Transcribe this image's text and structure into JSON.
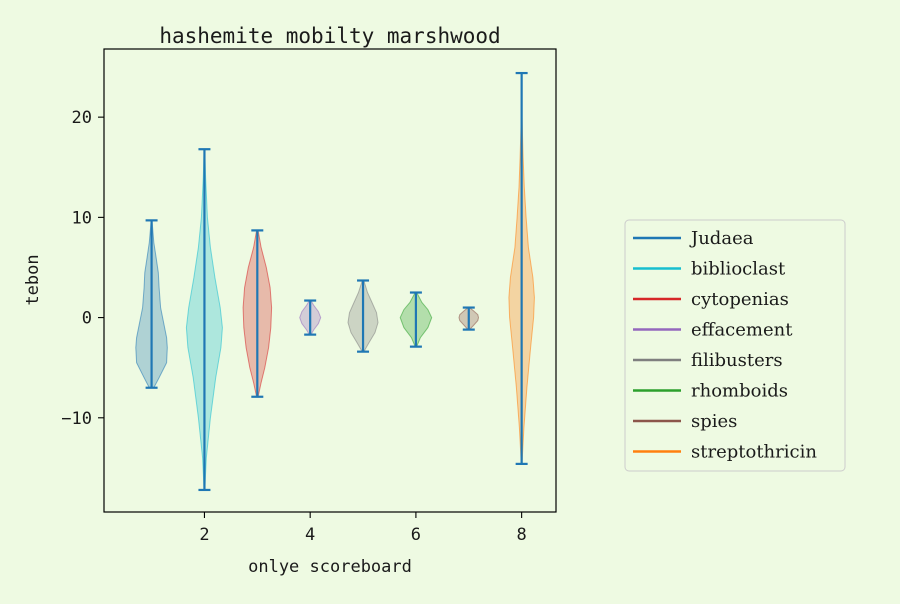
{
  "chart_data": {
    "type": "violin",
    "title": "hashemite mobilty marshwood",
    "xlabel": "onlye scoreboard",
    "ylabel": "tebon",
    "xlim": [
      0.1,
      8.65
    ],
    "ylim": [
      -19.4,
      26.8
    ],
    "xticks": [
      2,
      4,
      6,
      8
    ],
    "yticks": [
      -10,
      0,
      10,
      20
    ],
    "grid": false,
    "legend_position": "right",
    "colors": {
      "background": "#eefae2",
      "axes_background": "#eefae2",
      "extrema_lines": "#1f77b4"
    },
    "series": [
      {
        "name": "Judaea",
        "color": "#1f77b4",
        "x": 1,
        "min": -7.0,
        "max": 9.7,
        "profile": [
          [
            -7.0,
            0.3
          ],
          [
            -6.0,
            1.0
          ],
          [
            -4.5,
            2.0
          ],
          [
            -3.0,
            2.1
          ],
          [
            -2.0,
            2.0
          ],
          [
            -0.5,
            1.6
          ],
          [
            1.0,
            1.2
          ],
          [
            3.0,
            1.0
          ],
          [
            4.5,
            0.9
          ],
          [
            6.0,
            0.6
          ],
          [
            7.5,
            0.3
          ],
          [
            9.7,
            0.05
          ]
        ]
      },
      {
        "name": "biblioclast",
        "color": "#17becf",
        "x": 2,
        "min": -17.2,
        "max": 16.8,
        "profile": [
          [
            -17.2,
            0.05
          ],
          [
            -14,
            0.25
          ],
          [
            -10,
            0.8
          ],
          [
            -6,
            1.5
          ],
          [
            -3,
            2.2
          ],
          [
            -1,
            2.4
          ],
          [
            1,
            2.1
          ],
          [
            4,
            1.4
          ],
          [
            7,
            0.8
          ],
          [
            10,
            0.4
          ],
          [
            14,
            0.15
          ],
          [
            16.8,
            0.03
          ]
        ]
      },
      {
        "name": "cytopenias",
        "color": "#d62728",
        "x": 3,
        "min": -7.9,
        "max": 8.7,
        "profile": [
          [
            -7.9,
            0.1
          ],
          [
            -6.5,
            0.5
          ],
          [
            -5,
            1.0
          ],
          [
            -3,
            1.5
          ],
          [
            -1,
            1.8
          ],
          [
            1,
            1.9
          ],
          [
            3,
            1.7
          ],
          [
            5,
            1.2
          ],
          [
            7,
            0.5
          ],
          [
            8.7,
            0.1
          ]
        ]
      },
      {
        "name": "effacement",
        "color": "#9467bd",
        "x": 4,
        "min": -1.7,
        "max": 1.7,
        "profile": [
          [
            -1.7,
            0.1
          ],
          [
            -1.2,
            0.5
          ],
          [
            -0.6,
            1.1
          ],
          [
            0,
            1.4
          ],
          [
            0.6,
            1.1
          ],
          [
            1.2,
            0.5
          ],
          [
            1.7,
            0.1
          ]
        ]
      },
      {
        "name": "filibusters",
        "color": "#7f7f7f",
        "x": 5,
        "min": -3.4,
        "max": 3.7,
        "profile": [
          [
            -3.4,
            0.1
          ],
          [
            -2.5,
            0.8
          ],
          [
            -1.5,
            1.6
          ],
          [
            -0.5,
            2.0
          ],
          [
            0.5,
            1.8
          ],
          [
            1.5,
            1.2
          ],
          [
            2.5,
            0.6
          ],
          [
            3.7,
            0.1
          ]
        ]
      },
      {
        "name": "rhomboids",
        "color": "#2ca02c",
        "x": 6,
        "min": -2.9,
        "max": 2.5,
        "profile": [
          [
            -2.9,
            0.1
          ],
          [
            -2.0,
            0.6
          ],
          [
            -1.0,
            1.6
          ],
          [
            0,
            2.1
          ],
          [
            0.8,
            1.6
          ],
          [
            1.5,
            0.8
          ],
          [
            2.5,
            0.1
          ]
        ]
      },
      {
        "name": "spies",
        "color": "#8c564b",
        "x": 7,
        "min": -1.2,
        "max": 1.0,
        "profile": [
          [
            -1.2,
            0.1
          ],
          [
            -0.8,
            0.6
          ],
          [
            -0.3,
            1.2
          ],
          [
            0,
            1.3
          ],
          [
            0.3,
            1.2
          ],
          [
            0.7,
            0.6
          ],
          [
            1.0,
            0.1
          ]
        ]
      },
      {
        "name": "streptothricin",
        "color": "#ff7f0e",
        "x": 8,
        "min": -14.6,
        "max": 24.4,
        "profile": [
          [
            -14.6,
            0.05
          ],
          [
            -11,
            0.3
          ],
          [
            -7,
            0.7
          ],
          [
            -3,
            1.2
          ],
          [
            0,
            1.6
          ],
          [
            2,
            1.7
          ],
          [
            4,
            1.5
          ],
          [
            7,
            0.9
          ],
          [
            10,
            0.6
          ],
          [
            13,
            0.35
          ],
          [
            16,
            0.2
          ],
          [
            20,
            0.05
          ],
          [
            24.4,
            0.02
          ]
        ]
      }
    ]
  }
}
